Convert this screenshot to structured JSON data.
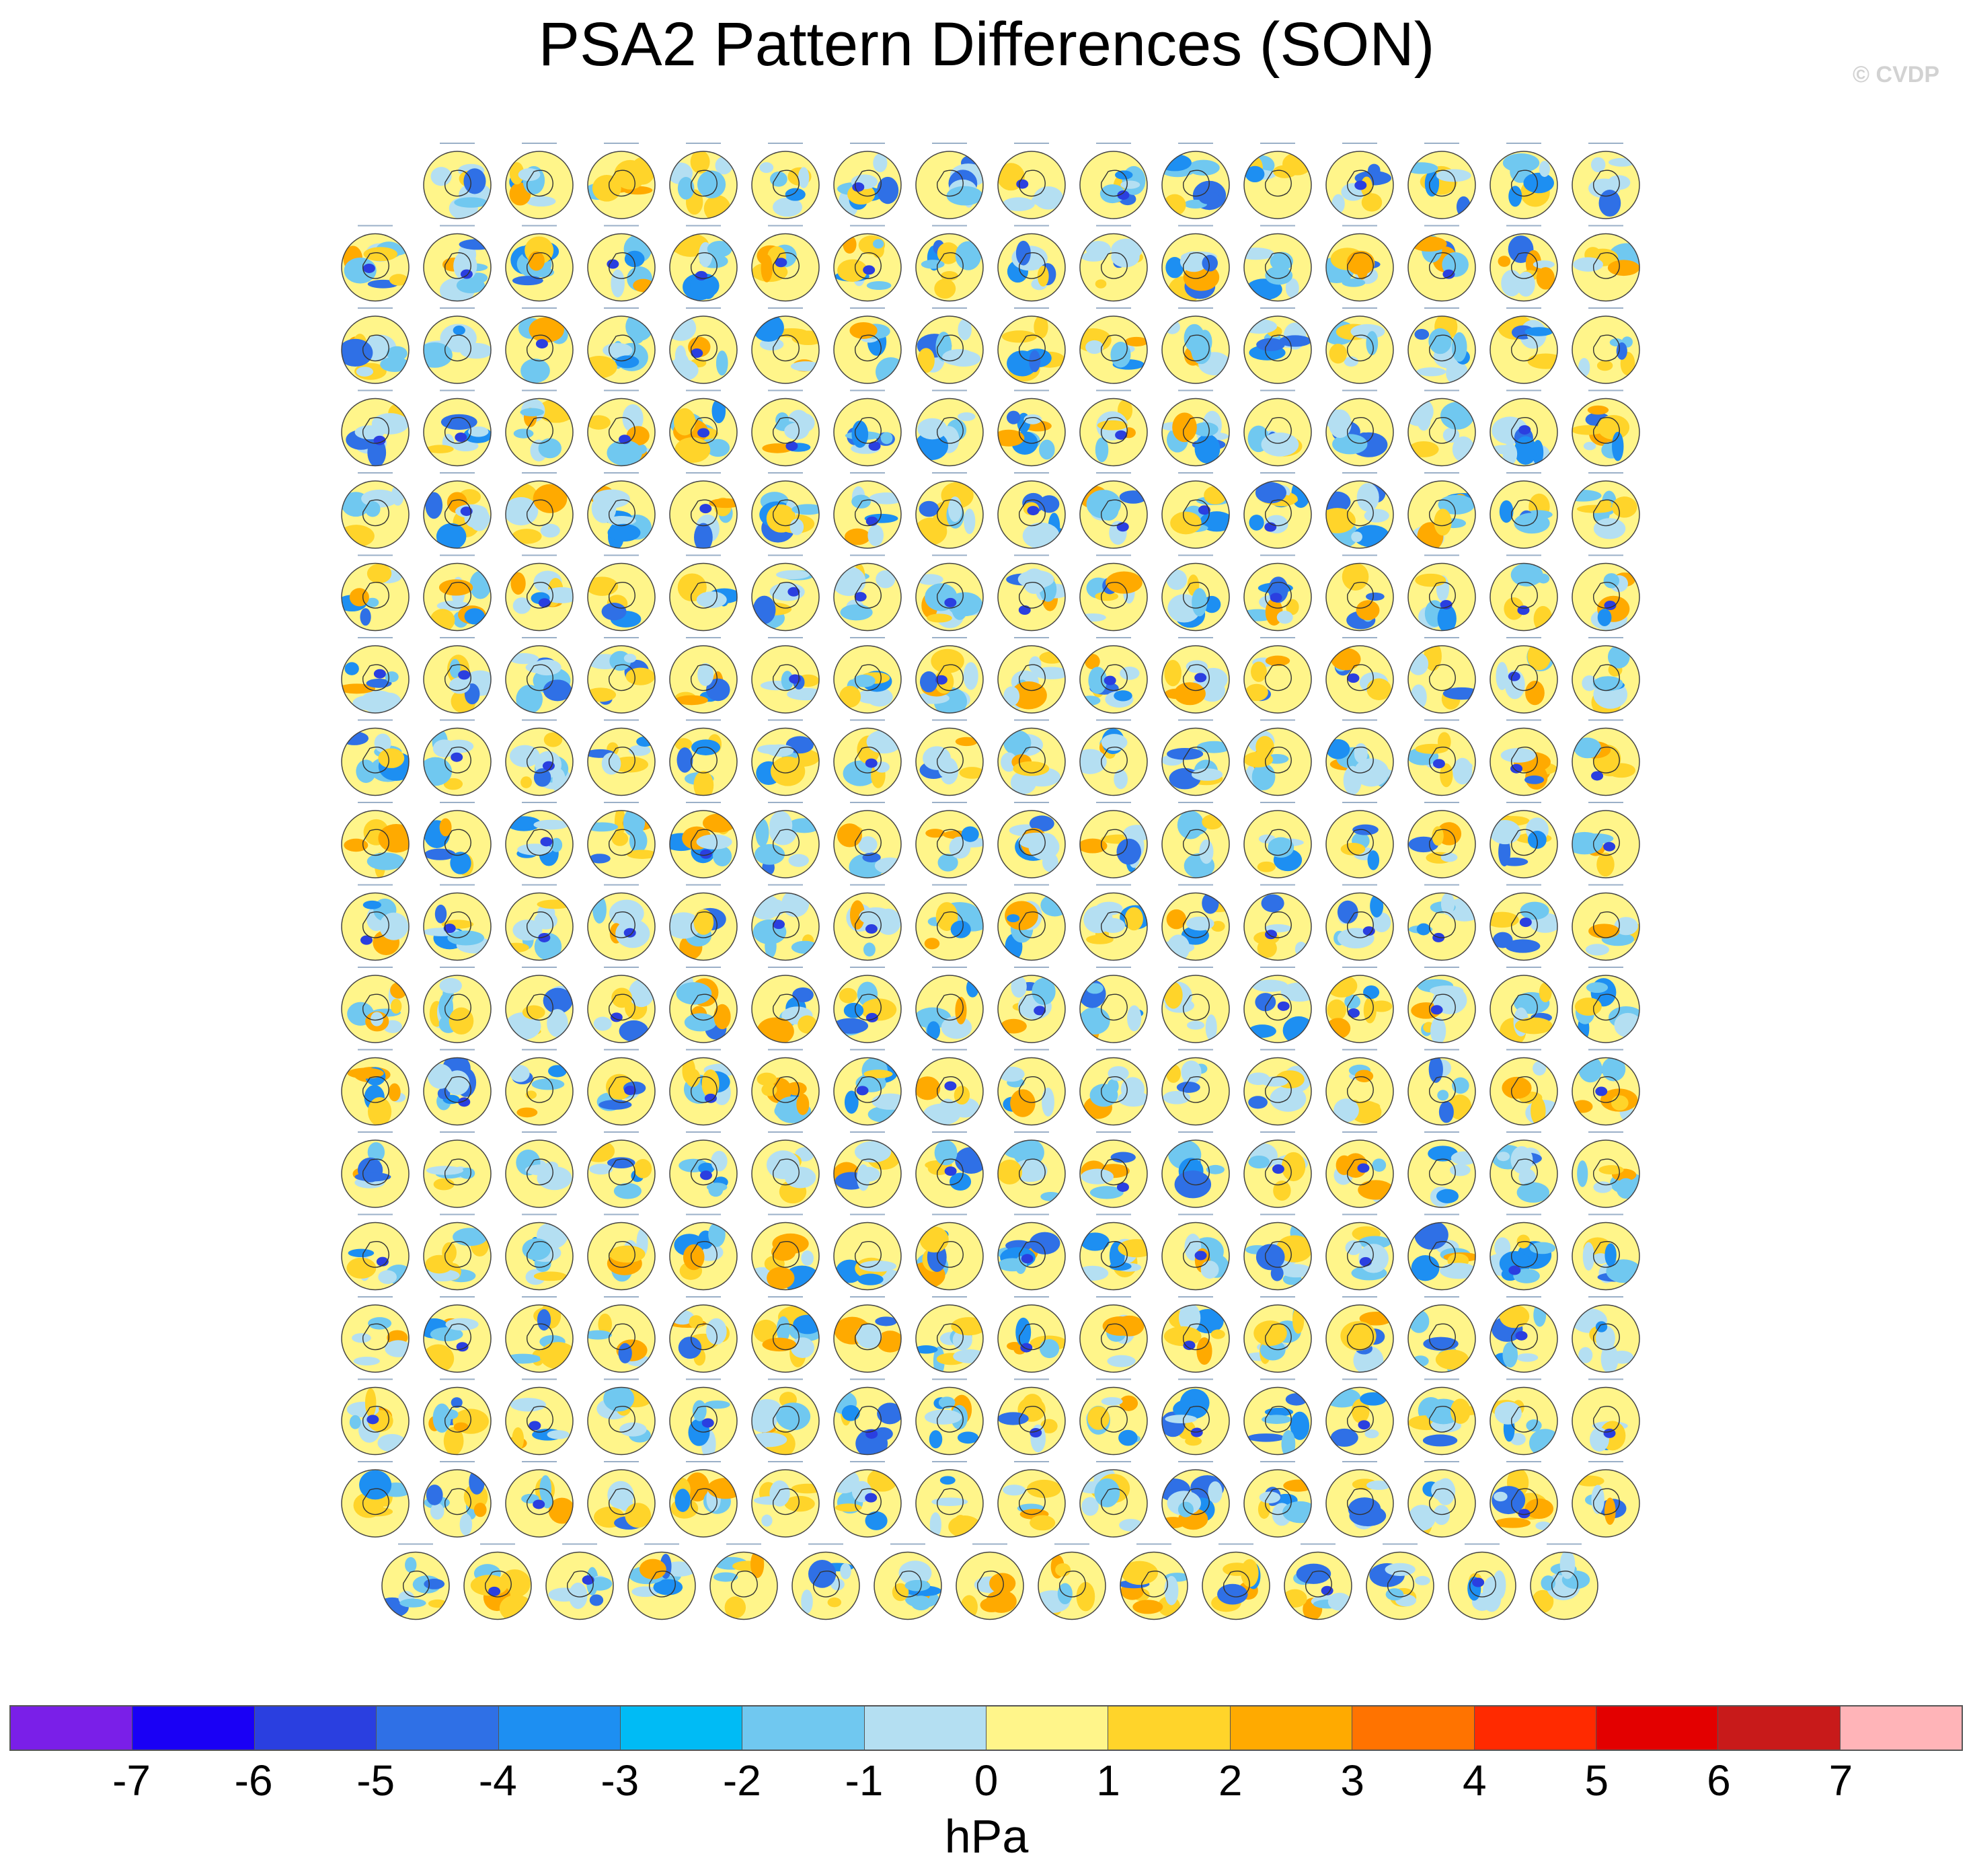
{
  "title": "PSA2 Pattern Differences (SON)",
  "credit": "© CVDP",
  "panel_grid": {
    "row_counts": [
      15,
      16,
      16,
      16,
      16,
      16,
      16,
      16,
      16,
      16,
      16,
      16,
      16,
      16,
      16,
      16,
      16,
      15
    ]
  },
  "colorbar": {
    "colors": [
      "#7a1fe8",
      "#1a00f5",
      "#2a3fe0",
      "#2f70e6",
      "#1d8ff2",
      "#00bbf5",
      "#70c8f0",
      "#b4dff2",
      "#fff58a",
      "#ffd42a",
      "#ffaa00",
      "#ff7300",
      "#ff2a00",
      "#e30000",
      "#c81a1a",
      "#ffb4b8"
    ],
    "tick_labels": [
      "-7",
      "-6",
      "-5",
      "-4",
      "-3",
      "-2",
      "-1",
      "0",
      "1",
      "2",
      "3",
      "4",
      "5",
      "6",
      "7"
    ],
    "unit": "hPa"
  }
}
